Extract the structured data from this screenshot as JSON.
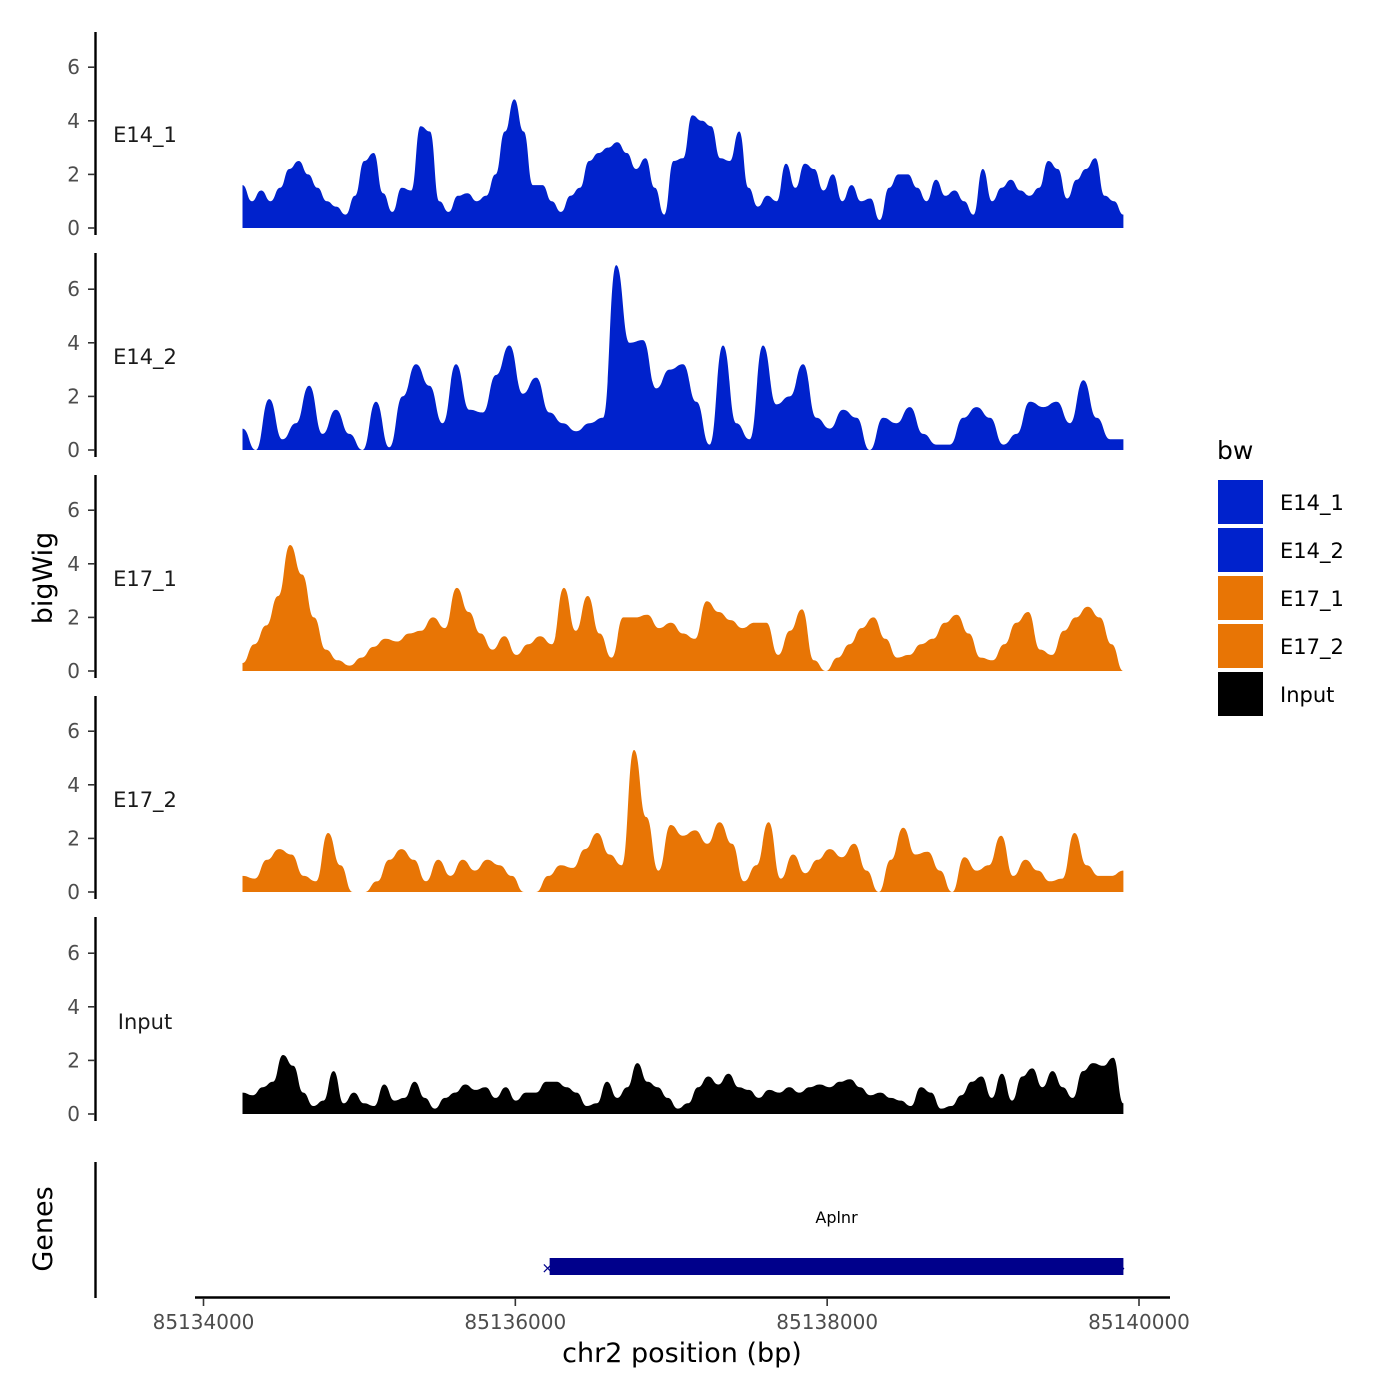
{
  "chart_data": {
    "type": "area",
    "chrom": "chr2",
    "xlim": [
      85133950,
      85140100
    ],
    "ylim": [
      0,
      7.2
    ],
    "x_ticks": [
      85134000,
      85136000,
      85138000,
      85140000
    ],
    "x_tick_labels": [
      "85134000",
      "85136000",
      "85138000",
      "85140000"
    ],
    "y_ticks": [
      0,
      2,
      4,
      6
    ],
    "y_tick_labels": [
      "0",
      "2",
      "4",
      "6"
    ],
    "xlabel": "chr2 position (bp)",
    "ylabel": "bigWig",
    "genes_label": "Genes",
    "legend": {
      "title": "bw",
      "items": [
        {
          "name": "E14_1",
          "color": "#0022CC"
        },
        {
          "name": "E14_2",
          "color": "#0022CC"
        },
        {
          "name": "E17_1",
          "color": "#E87505"
        },
        {
          "name": "E17_2",
          "color": "#E87505"
        },
        {
          "name": "Input",
          "color": "#000000"
        }
      ]
    },
    "x_range_data": [
      85134250,
      85139900
    ],
    "series": [
      {
        "name": "E14_1",
        "color": "#0022CC",
        "values": [
          1.6,
          1.0,
          1.4,
          1.0,
          1.5,
          2.2,
          2.5,
          2.0,
          1.5,
          1.0,
          0.8,
          0.5,
          1.2,
          2.5,
          2.8,
          1.3,
          0.6,
          1.5,
          1.4,
          3.8,
          3.6,
          1.0,
          0.6,
          1.2,
          1.3,
          1.0,
          1.2,
          2.0,
          3.6,
          4.8,
          3.6,
          1.6,
          1.6,
          1.0,
          0.6,
          1.2,
          1.5,
          2.5,
          2.8,
          3.0,
          3.2,
          2.8,
          2.2,
          2.6,
          1.5,
          0.5,
          2.5,
          2.6,
          4.2,
          4.0,
          3.8,
          2.6,
          2.5,
          3.6,
          1.5,
          0.8,
          1.2,
          1.0,
          2.4,
          1.5,
          2.4,
          2.2,
          1.4,
          2.0,
          1.0,
          1.6,
          1.0,
          1.1,
          0.3,
          1.5,
          2.0,
          2.0,
          1.5,
          1.0,
          1.8,
          1.2,
          1.4,
          1.0,
          0.5,
          2.2,
          1.0,
          1.5,
          1.8,
          1.4,
          1.2,
          1.5,
          2.5,
          2.2,
          1.1,
          1.8,
          2.2,
          2.6,
          1.2,
          1.0,
          0.5
        ]
      },
      {
        "name": "E14_2",
        "color": "#0022CC",
        "values": [
          0.8,
          0.0,
          1.9,
          0.4,
          1.0,
          2.4,
          0.6,
          1.5,
          0.6,
          0.0,
          1.8,
          0.1,
          2.0,
          3.2,
          2.4,
          1.0,
          3.2,
          1.5,
          1.4,
          2.8,
          3.9,
          2.1,
          2.7,
          1.4,
          1.0,
          0.7,
          1.0,
          1.2,
          6.9,
          4.0,
          4.1,
          2.3,
          3.0,
          3.2,
          1.8,
          0.2,
          3.9,
          1.0,
          0.4,
          3.9,
          1.7,
          2.0,
          3.2,
          1.2,
          0.8,
          1.5,
          1.2,
          0.0,
          1.2,
          1.0,
          1.6,
          0.6,
          0.2,
          0.2,
          1.2,
          1.6,
          1.2,
          0.2,
          0.6,
          1.8,
          1.6,
          1.8,
          1.0,
          2.6,
          1.2,
          0.4,
          0.4
        ]
      },
      {
        "name": "E17_1",
        "color": "#E87505",
        "values": [
          0.3,
          1.0,
          1.7,
          2.8,
          4.7,
          3.6,
          2.0,
          0.8,
          0.4,
          0.2,
          0.5,
          0.9,
          1.2,
          1.1,
          1.4,
          1.5,
          2.0,
          1.6,
          3.1,
          2.2,
          1.4,
          0.8,
          1.3,
          0.6,
          1.0,
          1.3,
          1.0,
          3.1,
          1.5,
          2.8,
          1.4,
          0.5,
          2.0,
          2.0,
          2.1,
          1.6,
          1.8,
          1.4,
          1.2,
          2.6,
          2.2,
          1.9,
          1.6,
          1.8,
          1.8,
          0.6,
          1.5,
          2.3,
          0.4,
          0.0,
          0.5,
          1.0,
          1.6,
          2.0,
          1.2,
          0.5,
          0.6,
          1.0,
          1.2,
          1.8,
          2.1,
          1.4,
          0.5,
          0.4,
          1.0,
          1.8,
          2.2,
          0.8,
          0.6,
          1.5,
          2.0,
          2.4,
          2.0,
          1.0,
          0.0
        ]
      },
      {
        "name": "E17_2",
        "color": "#E87505",
        "values": [
          0.6,
          0.5,
          1.2,
          1.6,
          1.4,
          0.6,
          0.4,
          2.2,
          1.0,
          0.0,
          0.0,
          0.4,
          1.2,
          1.6,
          1.2,
          0.4,
          1.2,
          0.6,
          1.2,
          0.8,
          1.2,
          1.0,
          0.6,
          0.0,
          0.0,
          0.6,
          1.0,
          0.9,
          1.6,
          2.2,
          1.4,
          1.0,
          5.3,
          2.8,
          0.8,
          2.5,
          2.1,
          2.3,
          1.8,
          2.6,
          1.8,
          0.4,
          1.0,
          2.6,
          0.5,
          1.4,
          0.7,
          1.2,
          1.6,
          1.3,
          1.8,
          0.8,
          0.0,
          1.2,
          2.4,
          1.4,
          1.5,
          0.8,
          0.0,
          1.3,
          0.8,
          1.0,
          2.1,
          0.6,
          1.2,
          0.8,
          0.4,
          0.5,
          2.2,
          1.0,
          0.6,
          0.6,
          0.8
        ]
      },
      {
        "name": "Input",
        "color": "#000000",
        "values": [
          0.8,
          0.7,
          1.0,
          1.2,
          2.2,
          1.8,
          0.8,
          0.3,
          0.5,
          1.6,
          0.4,
          0.8,
          0.4,
          0.3,
          1.1,
          0.5,
          0.6,
          1.2,
          0.6,
          0.2,
          0.6,
          0.8,
          1.1,
          0.9,
          1.0,
          0.6,
          1.0,
          0.5,
          0.8,
          0.8,
          1.2,
          1.2,
          1.0,
          0.8,
          0.3,
          0.4,
          1.2,
          0.6,
          1.0,
          1.9,
          1.2,
          1.0,
          0.6,
          0.2,
          0.4,
          1.0,
          1.4,
          1.1,
          1.5,
          1.0,
          0.9,
          0.6,
          0.9,
          0.8,
          1.0,
          0.8,
          1.0,
          1.1,
          1.0,
          1.2,
          1.3,
          1.0,
          0.7,
          0.8,
          0.6,
          0.5,
          0.3,
          1.0,
          0.8,
          0.2,
          0.3,
          0.7,
          1.2,
          1.4,
          0.6,
          1.5,
          0.5,
          1.4,
          1.7,
          1.0,
          1.6,
          1.0,
          0.6,
          1.6,
          1.9,
          1.8,
          2.1,
          0.4
        ]
      }
    ],
    "gene": {
      "name": "Aplnr",
      "start": 85136220,
      "end": 85139900,
      "color": "#00008B"
    }
  }
}
